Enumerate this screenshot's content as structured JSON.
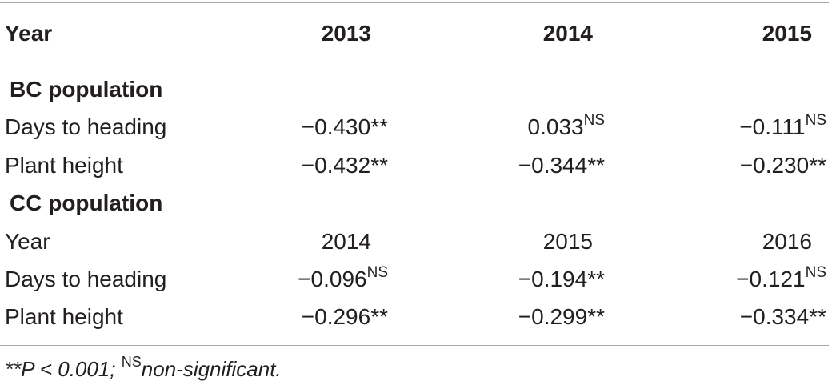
{
  "table": {
    "header": {
      "label": "Year",
      "years": [
        "2013",
        "2014",
        "2015"
      ]
    },
    "sections": [
      {
        "title": "BC population",
        "rows": [
          {
            "label": "Days to heading",
            "values": [
              {
                "v": "−0.430",
                "sig": "**"
              },
              {
                "v": "0.033",
                "sig": "NS"
              },
              {
                "v": "−0.111",
                "sig": "NS"
              }
            ]
          },
          {
            "label": "Plant height",
            "values": [
              {
                "v": "−0.432",
                "sig": "**"
              },
              {
                "v": "−0.344",
                "sig": "**"
              },
              {
                "v": "−0.230",
                "sig": "**"
              }
            ]
          }
        ]
      },
      {
        "title": "CC population",
        "year_row": {
          "label": "Year",
          "years": [
            "2014",
            "2015",
            "2016"
          ]
        },
        "rows": [
          {
            "label": "Days to heading",
            "values": [
              {
                "v": "−0.096",
                "sig": "NS"
              },
              {
                "v": "−0.194",
                "sig": "**"
              },
              {
                "v": "−0.121",
                "sig": "NS"
              }
            ]
          },
          {
            "label": "Plant height",
            "values": [
              {
                "v": "−0.296",
                "sig": "**"
              },
              {
                "v": "−0.299",
                "sig": "**"
              },
              {
                "v": "−0.334",
                "sig": "**"
              }
            ]
          }
        ]
      }
    ]
  },
  "footnote": {
    "part1": "**P < 0.001; ",
    "sup": "NS",
    "part2": "non-significant."
  }
}
